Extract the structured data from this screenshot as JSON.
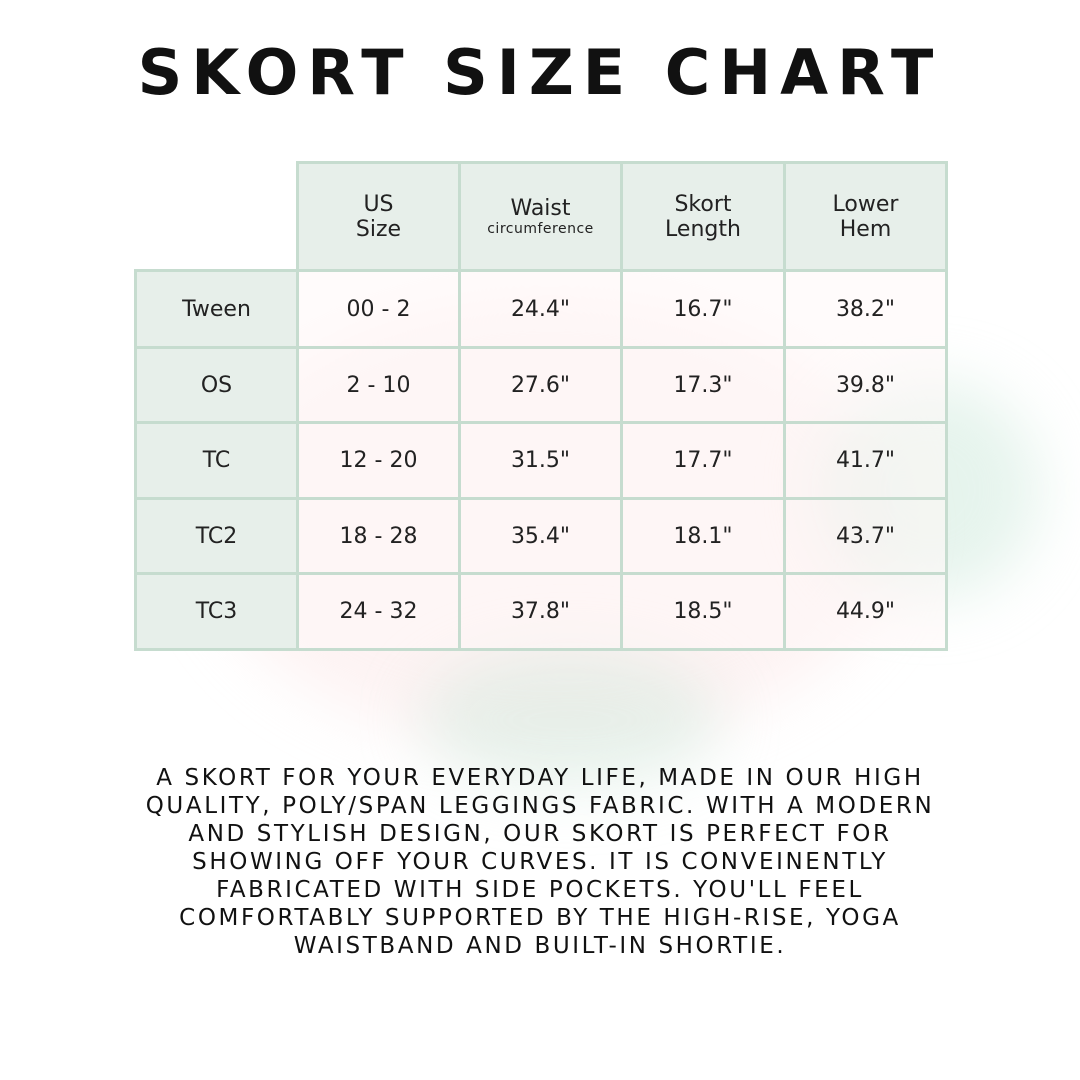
{
  "title": "SKORT SIZE CHART",
  "table": {
    "headers": [
      {
        "line1": "US",
        "line2": "Size",
        "sub": ""
      },
      {
        "line1": "Waist",
        "line2": "",
        "sub": "circumference"
      },
      {
        "line1": "Skort",
        "line2": "Length",
        "sub": ""
      },
      {
        "line1": "Lower",
        "line2": "Hem",
        "sub": ""
      }
    ],
    "rows": [
      {
        "label": "Tween",
        "values": [
          "00 - 2",
          "24.4\"",
          "16.7\"",
          "38.2\""
        ]
      },
      {
        "label": "OS",
        "values": [
          "2 - 10",
          "27.6\"",
          "17.3\"",
          "39.8\""
        ]
      },
      {
        "label": "TC",
        "values": [
          "12 - 20",
          "31.5\"",
          "17.7\"",
          "41.7\""
        ]
      },
      {
        "label": "TC2",
        "values": [
          "18 - 28",
          "35.4\"",
          "18.1\"",
          "43.7\""
        ]
      },
      {
        "label": "TC3",
        "values": [
          "24 - 32",
          "37.8\"",
          "18.5\"",
          "44.9\""
        ]
      }
    ]
  },
  "description_lines": [
    "A skort for your everyday life, made in our high",
    "quality, poly/span leggings fabric. With a modern",
    "and stylish design, our skort is perfect for",
    "showing off your curves. It is conveinently",
    "fabricated with side pockets. You'll feel",
    "comfortably supported by the high-rise, yoga",
    "waistband and built-in shortie."
  ],
  "colors": {
    "header_bg": "#e7efea",
    "border": "#c6dccf",
    "text": "#111111"
  }
}
